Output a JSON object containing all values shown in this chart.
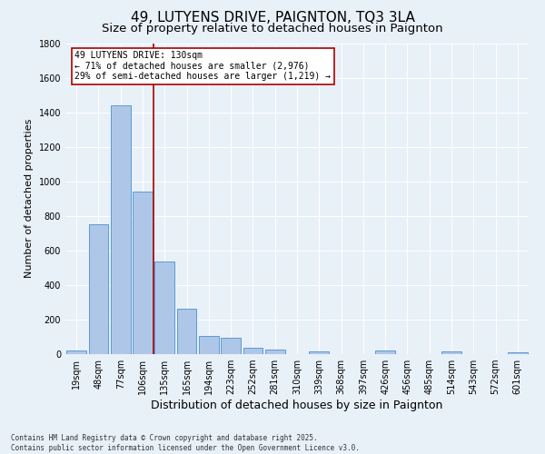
{
  "title": "49, LUTYENS DRIVE, PAIGNTON, TQ3 3LA",
  "subtitle": "Size of property relative to detached houses in Paignton",
  "xlabel": "Distribution of detached houses by size in Paignton",
  "ylabel": "Number of detached properties",
  "categories": [
    "19sqm",
    "48sqm",
    "77sqm",
    "106sqm",
    "135sqm",
    "165sqm",
    "194sqm",
    "223sqm",
    "252sqm",
    "281sqm",
    "310sqm",
    "339sqm",
    "368sqm",
    "397sqm",
    "426sqm",
    "456sqm",
    "485sqm",
    "514sqm",
    "543sqm",
    "572sqm",
    "601sqm"
  ],
  "values": [
    20,
    750,
    1440,
    940,
    535,
    265,
    105,
    95,
    38,
    28,
    0,
    15,
    0,
    0,
    20,
    0,
    0,
    18,
    0,
    0,
    8
  ],
  "bar_color": "#aec6e8",
  "bar_edge_color": "#5b9bd5",
  "background_color": "#e8f0f8",
  "grid_color": "#ffffff",
  "redline_x": 3.5,
  "marker_label": "49 LUTYENS DRIVE: 130sqm",
  "marker_line1": "← 71% of detached houses are smaller (2,976)",
  "marker_line2": "29% of semi-detached houses are larger (1,219) →",
  "annotation_box_color": "#aa0000",
  "ylim": [
    0,
    1800
  ],
  "yticks": [
    0,
    200,
    400,
    600,
    800,
    1000,
    1200,
    1400,
    1600,
    1800
  ],
  "footer_line1": "Contains HM Land Registry data © Crown copyright and database right 2025.",
  "footer_line2": "Contains public sector information licensed under the Open Government Licence v3.0.",
  "title_fontsize": 11,
  "subtitle_fontsize": 9.5,
  "ylabel_fontsize": 8,
  "xlabel_fontsize": 9,
  "tick_fontsize": 7,
  "footer_fontsize": 5.5,
  "annot_fontsize": 7
}
